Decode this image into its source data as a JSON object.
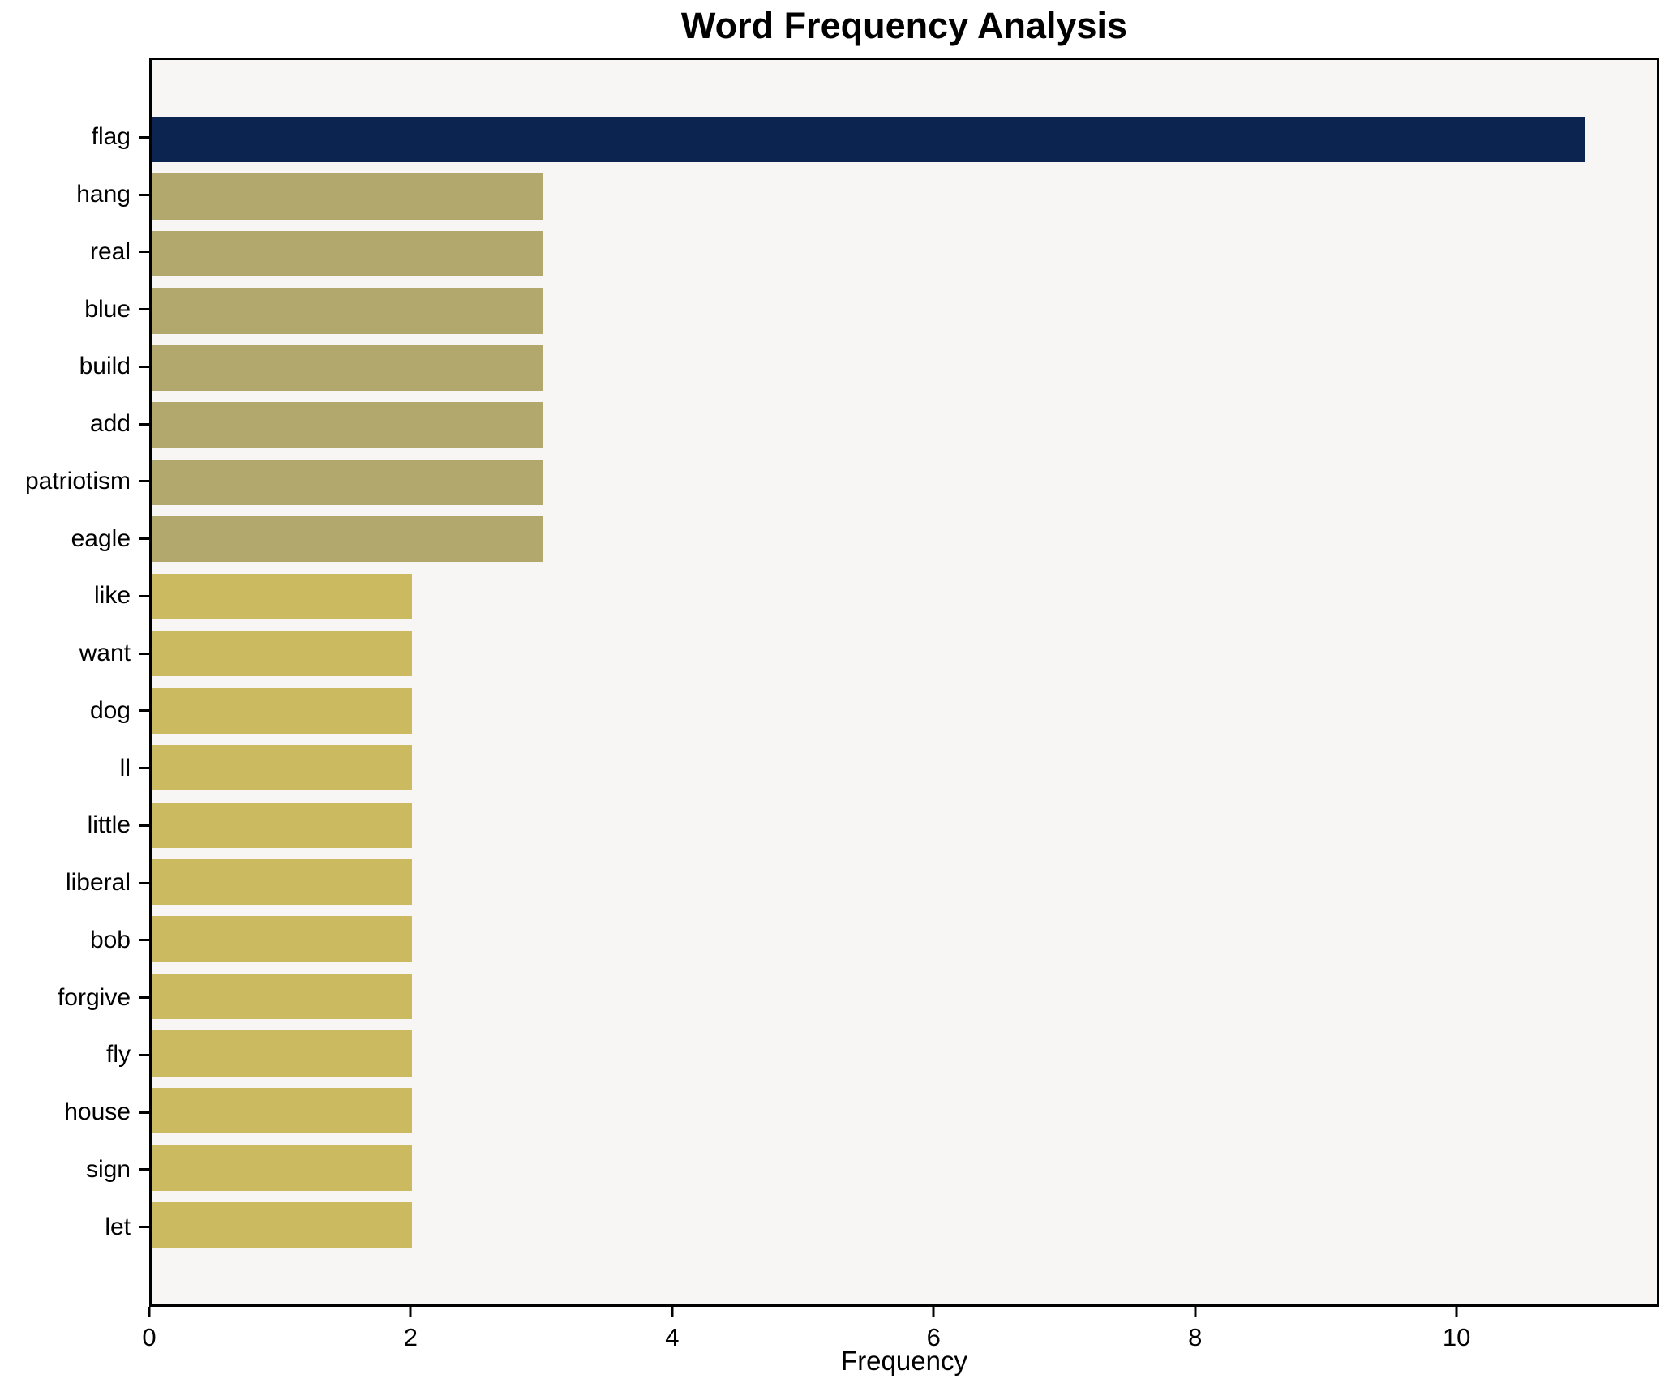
{
  "chart_data": {
    "type": "bar",
    "orientation": "horizontal",
    "title": "Word Frequency Analysis",
    "xlabel": "Frequency",
    "ylabel": "",
    "categories": [
      "flag",
      "hang",
      "real",
      "blue",
      "build",
      "add",
      "patriotism",
      "eagle",
      "like",
      "want",
      "dog",
      "ll",
      "little",
      "liberal",
      "bob",
      "forgive",
      "fly",
      "house",
      "sign",
      "let"
    ],
    "values": [
      11,
      3,
      3,
      3,
      3,
      3,
      3,
      3,
      2,
      2,
      2,
      2,
      2,
      2,
      2,
      2,
      2,
      2,
      2,
      2
    ],
    "bar_colors": [
      "#0b2450",
      "#b2a76c",
      "#b2a76c",
      "#b2a76c",
      "#b2a76c",
      "#b2a76c",
      "#b2a76c",
      "#b2a76c",
      "#ccba60",
      "#ccba60",
      "#ccba60",
      "#ccba60",
      "#ccba60",
      "#ccba60",
      "#ccba60",
      "#ccba60",
      "#ccba60",
      "#ccba60",
      "#ccba60",
      "#ccba60"
    ],
    "xticks": [
      0,
      2,
      4,
      6,
      8,
      10
    ],
    "xlim": [
      0,
      11.55
    ],
    "bar_thickness": 0.8,
    "axis_margin": 0.05,
    "grid": false,
    "legend": null,
    "plot_background": "#f7f6f4",
    "spine_color": "#000000"
  }
}
